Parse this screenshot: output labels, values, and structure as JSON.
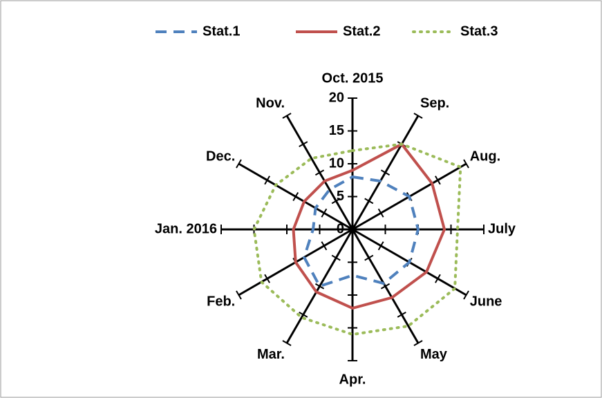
{
  "chart_data": {
    "type": "radar",
    "categories": [
      "Oct. 2015",
      "Sep.",
      "Aug.",
      "July",
      "June",
      "May",
      "Apr.",
      "Mar.",
      "Feb.",
      "Jan. 2016",
      "Dec.",
      "Nov."
    ],
    "series": [
      {
        "name": "Stat.1",
        "color": "#4f81bd",
        "dash": "dashed",
        "values": [
          8,
          8.5,
          10,
          10,
          10,
          9.5,
          7,
          10,
          8.5,
          6,
          6.5,
          7
        ]
      },
      {
        "name": "Stat.2",
        "color": "#c0504d",
        "dash": "solid",
        "values": [
          9,
          15,
          14,
          14,
          13,
          12,
          12,
          11,
          10,
          9,
          8.5,
          8.5
        ]
      },
      {
        "name": "Stat.3",
        "color": "#9bbb59",
        "dash": "dotted",
        "values": [
          12,
          15,
          19,
          16,
          18,
          17,
          16,
          15.5,
          16,
          15,
          13.5,
          12.5
        ]
      }
    ],
    "rlim": [
      0,
      20
    ],
    "rticks": [
      0,
      5,
      10,
      15,
      20
    ],
    "legend": "top"
  }
}
